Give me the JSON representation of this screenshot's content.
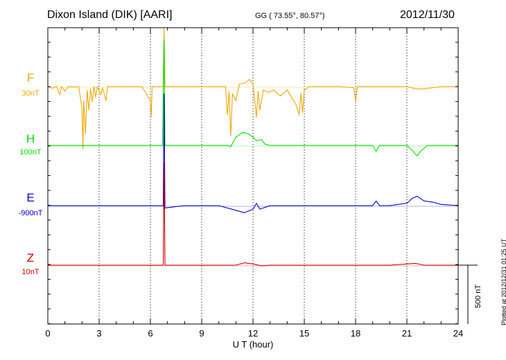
{
  "header": {
    "station": "Dixon Island (DIK)  [AARI]",
    "coords": "GG ( 73.55°,  80.57°)",
    "date": "2012/11/30"
  },
  "plotted_note": "Plotted at 2012/12/31 01:25 UT",
  "scale_label": "500 nT",
  "chart_data": {
    "type": "line",
    "title": "",
    "xlabel": "U T (hour)",
    "ylabel": "",
    "xlim": [
      0,
      24
    ],
    "x_ticks": [
      0,
      3,
      6,
      9,
      12,
      15,
      18,
      21,
      24
    ],
    "y_scale_bar_nT": 500,
    "grid": true,
    "series": [
      {
        "name": "F",
        "offset_label": "30nT",
        "color": "#f0a800",
        "baseline_nT": 0,
        "points": [
          [
            0,
            0
          ],
          [
            0.3,
            -15
          ],
          [
            0.5,
            5
          ],
          [
            0.7,
            -70
          ],
          [
            0.8,
            0
          ],
          [
            1.0,
            -40
          ],
          [
            1.2,
            0
          ],
          [
            1.5,
            -5
          ],
          [
            1.8,
            0
          ],
          [
            2.0,
            -180
          ],
          [
            2.05,
            -530
          ],
          [
            2.1,
            -120
          ],
          [
            2.2,
            -400
          ],
          [
            2.3,
            -30
          ],
          [
            2.4,
            -200
          ],
          [
            2.5,
            -20
          ],
          [
            2.6,
            -130
          ],
          [
            2.7,
            0
          ],
          [
            2.8,
            -90
          ],
          [
            2.9,
            0
          ],
          [
            3.1,
            -70
          ],
          [
            3.2,
            -10
          ],
          [
            3.4,
            -120
          ],
          [
            3.5,
            0
          ],
          [
            4.0,
            0
          ],
          [
            5.5,
            0
          ],
          [
            6.0,
            -120
          ],
          [
            6.05,
            -260
          ],
          [
            6.1,
            0
          ],
          [
            6.6,
            0
          ],
          [
            6.75,
            0
          ],
          [
            6.8,
            920
          ],
          [
            6.85,
            0
          ],
          [
            7.5,
            0
          ],
          [
            9.0,
            0
          ],
          [
            10.0,
            0
          ],
          [
            10.4,
            0
          ],
          [
            10.5,
            -240
          ],
          [
            10.6,
            -40
          ],
          [
            10.7,
            -420
          ],
          [
            10.8,
            -60
          ],
          [
            11.0,
            -120
          ],
          [
            11.2,
            20
          ],
          [
            11.5,
            30
          ],
          [
            11.8,
            60
          ],
          [
            12.0,
            20
          ],
          [
            12.2,
            -260
          ],
          [
            12.3,
            -40
          ],
          [
            12.4,
            -200
          ],
          [
            12.6,
            -30
          ],
          [
            12.9,
            -50
          ],
          [
            13.2,
            -30
          ],
          [
            13.6,
            -80
          ],
          [
            14.0,
            -30
          ],
          [
            14.5,
            -150
          ],
          [
            14.7,
            -240
          ],
          [
            14.8,
            -60
          ],
          [
            14.9,
            -220
          ],
          [
            15.0,
            -30
          ],
          [
            15.3,
            0
          ],
          [
            16.0,
            0
          ],
          [
            17.0,
            0
          ],
          [
            17.9,
            -10
          ],
          [
            18.0,
            -130
          ],
          [
            18.1,
            0
          ],
          [
            19.0,
            0
          ],
          [
            20.0,
            0
          ],
          [
            21.0,
            0
          ],
          [
            21.5,
            -20
          ],
          [
            22.0,
            -20
          ],
          [
            23.0,
            0
          ],
          [
            24.0,
            0
          ]
        ]
      },
      {
        "name": "H",
        "offset_label": "100nT",
        "color": "#00dd00",
        "baseline_nT": 0,
        "points": [
          [
            0,
            0
          ],
          [
            2,
            0
          ],
          [
            4,
            0
          ],
          [
            6,
            0
          ],
          [
            6.7,
            0
          ],
          [
            6.8,
            900
          ],
          [
            6.85,
            0
          ],
          [
            8,
            0
          ],
          [
            10,
            0
          ],
          [
            10.5,
            0
          ],
          [
            10.7,
            -10
          ],
          [
            11.0,
            70
          ],
          [
            11.4,
            110
          ],
          [
            11.7,
            100
          ],
          [
            12.0,
            70
          ],
          [
            12.2,
            40
          ],
          [
            12.5,
            50
          ],
          [
            12.7,
            10
          ],
          [
            13.0,
            0
          ],
          [
            14,
            0
          ],
          [
            16,
            0
          ],
          [
            18,
            0
          ],
          [
            19,
            0
          ],
          [
            19.2,
            -50
          ],
          [
            19.4,
            0
          ],
          [
            20,
            0
          ],
          [
            21,
            0
          ],
          [
            21.3,
            -40
          ],
          [
            21.6,
            -90
          ],
          [
            21.8,
            -50
          ],
          [
            22.2,
            0
          ],
          [
            23,
            0
          ],
          [
            24,
            0
          ]
        ]
      },
      {
        "name": "E",
        "offset_label": "-900nT",
        "color": "#0000cc",
        "baseline_nT": 0,
        "points": [
          [
            0,
            0
          ],
          [
            2,
            0
          ],
          [
            4,
            0
          ],
          [
            6,
            0
          ],
          [
            6.75,
            0
          ],
          [
            6.8,
            950
          ],
          [
            6.85,
            -20
          ],
          [
            8,
            0
          ],
          [
            10,
            0
          ],
          [
            11.0,
            -40
          ],
          [
            11.5,
            -60
          ],
          [
            12.0,
            -30
          ],
          [
            12.2,
            20
          ],
          [
            12.4,
            -30
          ],
          [
            13,
            0
          ],
          [
            15,
            0
          ],
          [
            17,
            0
          ],
          [
            19,
            0
          ],
          [
            19.2,
            40
          ],
          [
            19.4,
            0
          ],
          [
            20,
            0
          ],
          [
            21,
            20
          ],
          [
            21.3,
            60
          ],
          [
            21.6,
            80
          ],
          [
            22.0,
            40
          ],
          [
            22.5,
            30
          ],
          [
            23,
            10
          ],
          [
            24,
            0
          ]
        ]
      },
      {
        "name": "Z",
        "offset_label": "10nT",
        "color": "#cc0000",
        "baseline_nT": 0,
        "points": [
          [
            0,
            0
          ],
          [
            3,
            0
          ],
          [
            6,
            0
          ],
          [
            6.75,
            0
          ],
          [
            6.8,
            870
          ],
          [
            6.85,
            0
          ],
          [
            9,
            0
          ],
          [
            11,
            0
          ],
          [
            11.5,
            20
          ],
          [
            12.0,
            10
          ],
          [
            12.5,
            -5
          ],
          [
            13,
            0
          ],
          [
            15,
            0
          ],
          [
            18,
            0
          ],
          [
            20,
            0
          ],
          [
            21,
            10
          ],
          [
            21.5,
            15
          ],
          [
            22,
            0
          ],
          [
            24,
            0
          ]
        ]
      }
    ]
  }
}
